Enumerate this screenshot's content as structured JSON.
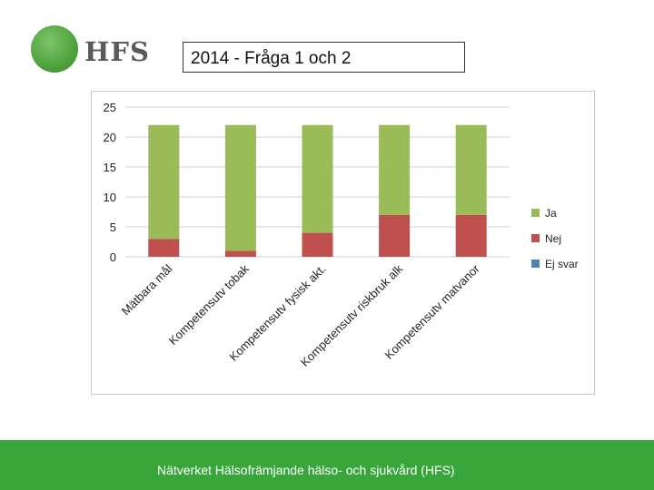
{
  "logo": {
    "text": "HFS"
  },
  "slide": {
    "title": "2014 - Fråga 1 och 2"
  },
  "footer": {
    "text": "Nätverket Hälsofrämjande hälso- och sjukvård (HFS)"
  },
  "chart_data": {
    "type": "bar",
    "stacked": true,
    "categories": [
      "Mätbara mål",
      "Kompetensutv tobak",
      "Kompetensutv fysisk akt.",
      "Kompetensutv riskbruk alk",
      "Kompetensutv matvanor"
    ],
    "series": [
      {
        "name": "Ja",
        "values": [
          19,
          21,
          18,
          15,
          15
        ],
        "color": "#9bbb59"
      },
      {
        "name": "Nej",
        "values": [
          3,
          1,
          4,
          7,
          7
        ],
        "color": "#c0504d"
      },
      {
        "name": "Ej svar",
        "values": [
          0,
          0,
          0,
          0,
          0
        ],
        "color": "#4f81bd"
      }
    ],
    "ylim": [
      0,
      25
    ],
    "yticks": [
      0,
      5,
      10,
      15,
      20,
      25
    ],
    "grid": true,
    "legend": "right"
  }
}
